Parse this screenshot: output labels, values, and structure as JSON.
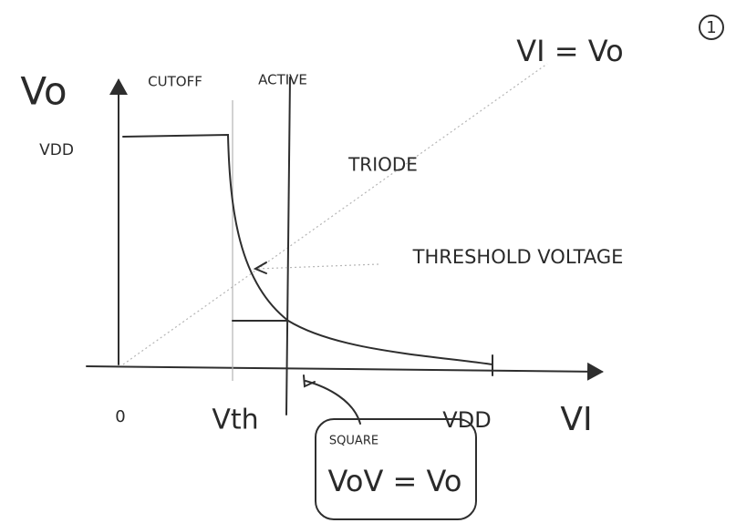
{
  "page_number": "1",
  "equation_top": "VI = Vo",
  "y_axis": {
    "label": "Vo",
    "value_label": "VDD"
  },
  "regions": {
    "cutoff": "CUTOFF",
    "active": "ACTIVE",
    "triode": "TRIODE"
  },
  "annotation": "THRESHOLD VOLTAGE",
  "x_axis": {
    "origin": "0",
    "threshold": "Vth",
    "max": "VDD",
    "label": "VI"
  },
  "note": {
    "title": "SQUARE",
    "equation": "VoV = Vo"
  }
}
